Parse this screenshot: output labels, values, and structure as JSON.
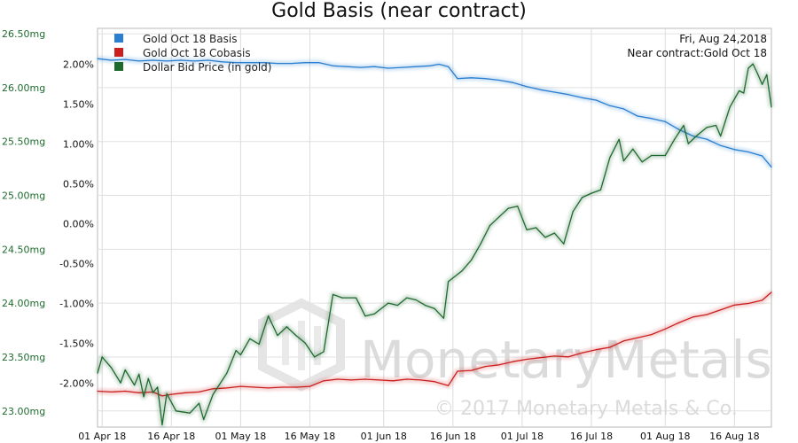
{
  "chart_data": {
    "type": "line",
    "title": "Gold Basis (near contract)",
    "info": {
      "date": "Fri, Aug 24,2018",
      "contract": "Near contract:Gold Oct 18"
    },
    "x_ticks": [
      "01 Apr 18",
      "16 Apr 18",
      "01 May 18",
      "16 May 18",
      "01 Jun 18",
      "16 Jun 18",
      "01 Jul 18",
      "16 Jul 18",
      "01 Aug 18",
      "16 Aug 18"
    ],
    "x_range": [
      "2018-03-31",
      "2018-08-24"
    ],
    "left_axis": {
      "ticks": [
        "26.50mg",
        "26.00mg",
        "25.50mg",
        "25.00mg",
        "24.50mg",
        "24.00mg",
        "23.50mg",
        "23.00mg"
      ],
      "range": [
        22.85,
        26.55
      ],
      "color": "#1e6b2e"
    },
    "right_axis": {
      "ticks": [
        "2.00%",
        "1.50%",
        "1.00%",
        "0.50%",
        "0.00%",
        "-0.50%",
        "-1.00%",
        "-1.50%",
        "-2.00%"
      ],
      "range": [
        -2.55,
        2.45
      ],
      "color": "#111111"
    },
    "grid": true,
    "legend_position": "top-left",
    "watermark": {
      "brand": "MonetaryMetals",
      "copyright": "© 2017 Monetary Metals & Co."
    },
    "series": [
      {
        "name": "Gold Oct 18 Basis",
        "color": "#2a7fd0",
        "axis": "right",
        "points": [
          [
            "2018-03-31",
            2.07
          ],
          [
            "2018-04-03",
            2.05
          ],
          [
            "2018-04-06",
            2.06
          ],
          [
            "2018-04-09",
            2.04
          ],
          [
            "2018-04-12",
            2.05
          ],
          [
            "2018-04-15",
            2.04
          ],
          [
            "2018-04-18",
            2.05
          ],
          [
            "2018-04-21",
            2.04
          ],
          [
            "2018-04-24",
            2.05
          ],
          [
            "2018-04-27",
            2.03
          ],
          [
            "2018-04-30",
            2.02
          ],
          [
            "2018-05-03",
            2.02
          ],
          [
            "2018-05-06",
            2.02
          ],
          [
            "2018-05-09",
            2.01
          ],
          [
            "2018-05-12",
            2.01
          ],
          [
            "2018-05-15",
            2.02
          ],
          [
            "2018-05-18",
            2.02
          ],
          [
            "2018-05-21",
            1.98
          ],
          [
            "2018-05-24",
            1.97
          ],
          [
            "2018-05-27",
            1.96
          ],
          [
            "2018-05-30",
            1.97
          ],
          [
            "2018-06-02",
            1.95
          ],
          [
            "2018-06-05",
            1.96
          ],
          [
            "2018-06-08",
            1.97
          ],
          [
            "2018-06-11",
            1.98
          ],
          [
            "2018-06-13",
            2.0
          ],
          [
            "2018-06-15",
            1.97
          ],
          [
            "2018-06-17",
            1.82
          ],
          [
            "2018-06-20",
            1.83
          ],
          [
            "2018-06-23",
            1.82
          ],
          [
            "2018-06-26",
            1.8
          ],
          [
            "2018-06-29",
            1.77
          ],
          [
            "2018-07-02",
            1.72
          ],
          [
            "2018-07-05",
            1.68
          ],
          [
            "2018-07-08",
            1.65
          ],
          [
            "2018-07-11",
            1.62
          ],
          [
            "2018-07-14",
            1.58
          ],
          [
            "2018-07-17",
            1.55
          ],
          [
            "2018-07-20",
            1.48
          ],
          [
            "2018-07-23",
            1.44
          ],
          [
            "2018-07-26",
            1.35
          ],
          [
            "2018-07-29",
            1.32
          ],
          [
            "2018-08-01",
            1.28
          ],
          [
            "2018-08-04",
            1.18
          ],
          [
            "2018-08-07",
            1.1
          ],
          [
            "2018-08-10",
            1.06
          ],
          [
            "2018-08-13",
            0.98
          ],
          [
            "2018-08-16",
            0.93
          ],
          [
            "2018-08-19",
            0.9
          ],
          [
            "2018-08-22",
            0.85
          ],
          [
            "2018-08-24",
            0.71
          ]
        ]
      },
      {
        "name": "Gold Oct 18 Cobasis",
        "color": "#cc1f1f",
        "axis": "right",
        "points": [
          [
            "2018-03-31",
            -2.1
          ],
          [
            "2018-04-03",
            -2.11
          ],
          [
            "2018-04-06",
            -2.1
          ],
          [
            "2018-04-09",
            -2.12
          ],
          [
            "2018-04-12",
            -2.11
          ],
          [
            "2018-04-14",
            -2.16
          ],
          [
            "2018-04-16",
            -2.14
          ],
          [
            "2018-04-19",
            -2.12
          ],
          [
            "2018-04-22",
            -2.11
          ],
          [
            "2018-04-25",
            -2.07
          ],
          [
            "2018-04-28",
            -2.06
          ],
          [
            "2018-05-01",
            -2.04
          ],
          [
            "2018-05-04",
            -2.05
          ],
          [
            "2018-05-07",
            -2.06
          ],
          [
            "2018-05-10",
            -2.05
          ],
          [
            "2018-05-13",
            -2.05
          ],
          [
            "2018-05-16",
            -2.04
          ],
          [
            "2018-05-19",
            -1.97
          ],
          [
            "2018-05-22",
            -1.95
          ],
          [
            "2018-05-25",
            -1.96
          ],
          [
            "2018-05-28",
            -1.95
          ],
          [
            "2018-05-31",
            -1.96
          ],
          [
            "2018-06-03",
            -1.97
          ],
          [
            "2018-06-06",
            -1.95
          ],
          [
            "2018-06-09",
            -1.96
          ],
          [
            "2018-06-12",
            -1.98
          ],
          [
            "2018-06-15",
            -2.03
          ],
          [
            "2018-06-17",
            -1.85
          ],
          [
            "2018-06-20",
            -1.84
          ],
          [
            "2018-06-23",
            -1.79
          ],
          [
            "2018-06-26",
            -1.77
          ],
          [
            "2018-06-29",
            -1.73
          ],
          [
            "2018-07-02",
            -1.7
          ],
          [
            "2018-07-05",
            -1.68
          ],
          [
            "2018-07-08",
            -1.66
          ],
          [
            "2018-07-11",
            -1.67
          ],
          [
            "2018-07-14",
            -1.62
          ],
          [
            "2018-07-17",
            -1.58
          ],
          [
            "2018-07-20",
            -1.55
          ],
          [
            "2018-07-23",
            -1.47
          ],
          [
            "2018-07-26",
            -1.43
          ],
          [
            "2018-07-29",
            -1.39
          ],
          [
            "2018-08-01",
            -1.32
          ],
          [
            "2018-08-04",
            -1.24
          ],
          [
            "2018-08-07",
            -1.17
          ],
          [
            "2018-08-10",
            -1.14
          ],
          [
            "2018-08-13",
            -1.08
          ],
          [
            "2018-08-16",
            -1.02
          ],
          [
            "2018-08-19",
            -1.0
          ],
          [
            "2018-08-22",
            -0.96
          ],
          [
            "2018-08-24",
            -0.86
          ]
        ]
      },
      {
        "name": "Dollar Bid Price (in gold)",
        "color": "#1e6b2e",
        "axis": "left",
        "points": [
          [
            "2018-03-31",
            23.35
          ],
          [
            "2018-04-01",
            23.5
          ],
          [
            "2018-04-03",
            23.4
          ],
          [
            "2018-04-05",
            23.26
          ],
          [
            "2018-04-06",
            23.38
          ],
          [
            "2018-04-08",
            23.24
          ],
          [
            "2018-04-09",
            23.34
          ],
          [
            "2018-04-10",
            23.13
          ],
          [
            "2018-04-11",
            23.3
          ],
          [
            "2018-04-12",
            23.17
          ],
          [
            "2018-04-13",
            23.22
          ],
          [
            "2018-04-14",
            22.87
          ],
          [
            "2018-04-15",
            23.16
          ],
          [
            "2018-04-17",
            23.0
          ],
          [
            "2018-04-20",
            22.98
          ],
          [
            "2018-04-22",
            23.07
          ],
          [
            "2018-04-23",
            22.92
          ],
          [
            "2018-04-25",
            23.15
          ],
          [
            "2018-04-28",
            23.35
          ],
          [
            "2018-04-30",
            23.56
          ],
          [
            "2018-05-01",
            23.52
          ],
          [
            "2018-05-03",
            23.67
          ],
          [
            "2018-05-05",
            23.62
          ],
          [
            "2018-05-07",
            23.88
          ],
          [
            "2018-05-09",
            23.7
          ],
          [
            "2018-05-11",
            23.78
          ],
          [
            "2018-05-13",
            23.7
          ],
          [
            "2018-05-15",
            23.63
          ],
          [
            "2018-05-17",
            23.5
          ],
          [
            "2018-05-19",
            23.55
          ],
          [
            "2018-05-21",
            24.08
          ],
          [
            "2018-05-23",
            24.05
          ],
          [
            "2018-05-26",
            24.05
          ],
          [
            "2018-05-28",
            23.88
          ],
          [
            "2018-05-30",
            23.9
          ],
          [
            "2018-06-02",
            24.0
          ],
          [
            "2018-06-04",
            23.98
          ],
          [
            "2018-06-06",
            24.05
          ],
          [
            "2018-06-08",
            24.03
          ],
          [
            "2018-06-10",
            23.98
          ],
          [
            "2018-06-12",
            23.95
          ],
          [
            "2018-06-14",
            23.86
          ],
          [
            "2018-06-15",
            24.2
          ],
          [
            "2018-06-18",
            24.3
          ],
          [
            "2018-06-20",
            24.4
          ],
          [
            "2018-06-22",
            24.55
          ],
          [
            "2018-06-24",
            24.72
          ],
          [
            "2018-06-26",
            24.8
          ],
          [
            "2018-06-28",
            24.88
          ],
          [
            "2018-06-30",
            24.9
          ],
          [
            "2018-07-02",
            24.68
          ],
          [
            "2018-07-04",
            24.7
          ],
          [
            "2018-07-06",
            24.61
          ],
          [
            "2018-07-08",
            24.65
          ],
          [
            "2018-07-10",
            24.55
          ],
          [
            "2018-07-12",
            24.85
          ],
          [
            "2018-07-14",
            24.98
          ],
          [
            "2018-07-16",
            25.02
          ],
          [
            "2018-07-18",
            25.05
          ],
          [
            "2018-07-20",
            25.35
          ],
          [
            "2018-07-22",
            25.52
          ],
          [
            "2018-07-23",
            25.32
          ],
          [
            "2018-07-25",
            25.43
          ],
          [
            "2018-07-27",
            25.31
          ],
          [
            "2018-07-29",
            25.37
          ],
          [
            "2018-08-01",
            25.37
          ],
          [
            "2018-08-03",
            25.52
          ],
          [
            "2018-08-05",
            25.65
          ],
          [
            "2018-08-06",
            25.48
          ],
          [
            "2018-08-08",
            25.56
          ],
          [
            "2018-08-10",
            25.63
          ],
          [
            "2018-08-12",
            25.65
          ],
          [
            "2018-08-13",
            25.55
          ],
          [
            "2018-08-15",
            25.82
          ],
          [
            "2018-08-17",
            25.97
          ],
          [
            "2018-08-18",
            25.95
          ],
          [
            "2018-08-19",
            26.18
          ],
          [
            "2018-08-20",
            26.22
          ],
          [
            "2018-08-21",
            26.13
          ],
          [
            "2018-08-22",
            26.03
          ],
          [
            "2018-08-23",
            26.12
          ],
          [
            "2018-08-24",
            25.82
          ]
        ]
      }
    ]
  }
}
